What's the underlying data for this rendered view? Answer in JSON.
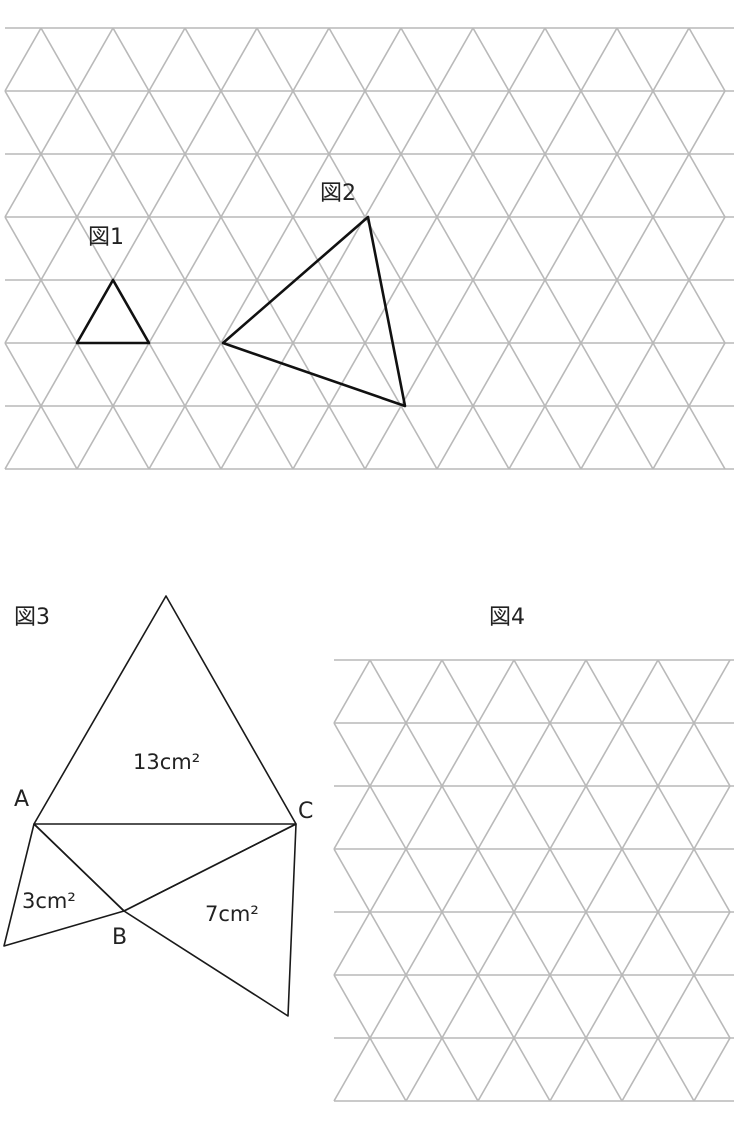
{
  "figure1": {
    "label": "図1"
  },
  "figure2": {
    "label": "図2"
  },
  "figure3": {
    "label": "図3",
    "vertices": {
      "a": "A",
      "b": "B",
      "c": "C"
    },
    "areas": {
      "top": "13cm²",
      "left": "3cm²",
      "right": "7cm²"
    }
  },
  "figure4": {
    "label": "図4"
  }
}
